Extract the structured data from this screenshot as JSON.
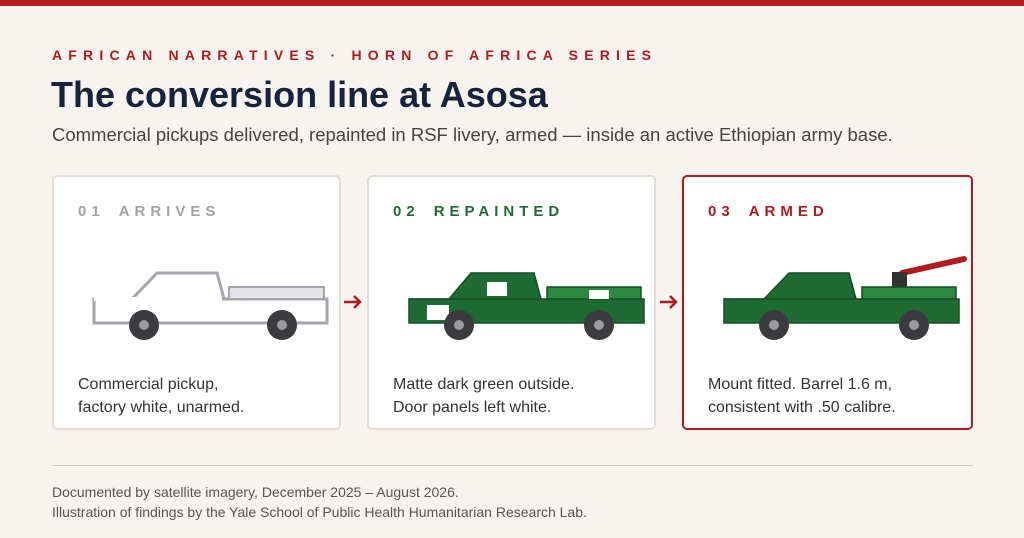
{
  "header": {
    "kicker": "AFRICAN NARRATIVES · HORN OF AFRICA SERIES",
    "title": "The conversion line at Asosa",
    "subtitle": "Commercial pickups delivered, repainted in RSF livery, armed — inside an active Ethiopian army base."
  },
  "steps": [
    {
      "number": "01",
      "label": "ARRIVES",
      "caption": [
        "Commercial pickup,",
        "factory white, unarmed."
      ]
    },
    {
      "number": "02",
      "label": "REPAINTED",
      "caption": [
        "Matte dark green outside.",
        "Door panels left white."
      ]
    },
    {
      "number": "03",
      "label": "ARMED",
      "caption": [
        "Mount fitted. Barrel 1.6 m,",
        "consistent with .50 calibre."
      ]
    }
  ],
  "footer": [
    "Documented by satellite imagery, December 2025 – August 2026.",
    "Illustration of findings by the Yale School of Public Health Humanitarian Research Lab."
  ]
}
